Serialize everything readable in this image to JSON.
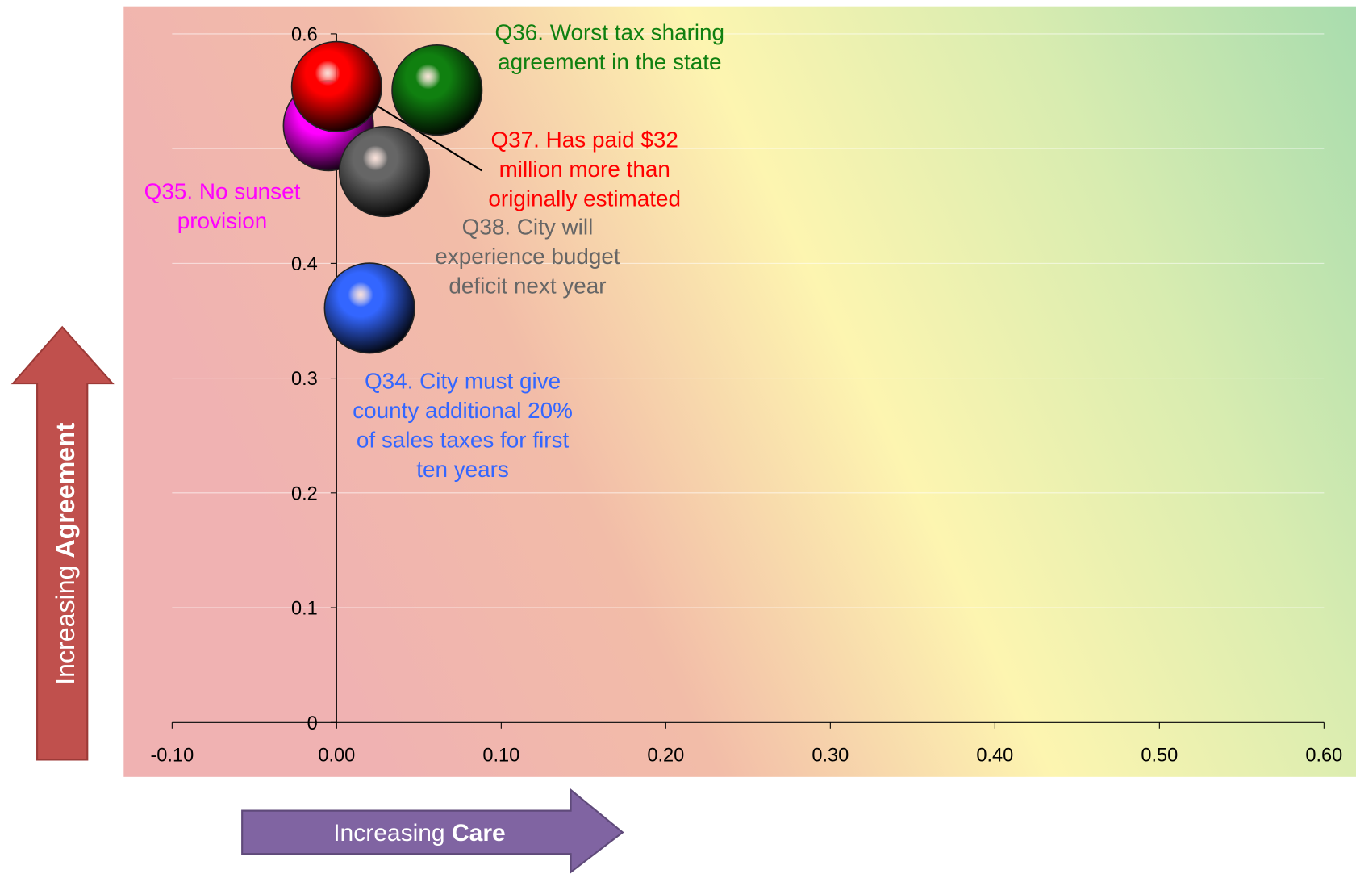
{
  "chart_data": {
    "type": "scatter",
    "x_label": [
      "Increasing",
      "Care"
    ],
    "y_label": [
      "Increasing",
      "Agreement"
    ],
    "xlim": [
      -0.1,
      0.6
    ],
    "xticks": [
      {
        "value": -0.1,
        "label": "-0.10"
      },
      {
        "value": 0,
        "label": "0.00"
      },
      {
        "value": 0.1,
        "label": "0.10"
      },
      {
        "value": 0.2,
        "label": "0.20"
      },
      {
        "value": 0.3,
        "label": "0.30"
      },
      {
        "value": 0.4,
        "label": "0.40"
      },
      {
        "value": 0.5,
        "label": "0.50"
      },
      {
        "value": 0.6,
        "label": "0.60"
      }
    ],
    "ylim": [
      0,
      0.6
    ],
    "yticks": [
      0,
      0.1,
      0.2,
      0.3,
      0.4,
      0.5,
      0.6
    ],
    "grid": true,
    "series": [
      {
        "name": "Q34. City must give county additional 20% of sales taxes for first ten years",
        "color": "#3366ff",
        "x": [
          0.02
        ],
        "values": [
          0.361
        ]
      },
      {
        "name": "Q35. No sunset provision",
        "color": "#ff00ff",
        "x": [
          -0.005
        ],
        "values": [
          0.52
        ]
      },
      {
        "name": "Q38. City will experience budget deficit next year",
        "color": "#666666",
        "x": [
          0.029
        ],
        "values": [
          0.48
        ]
      },
      {
        "name": "Q36. Worst tax sharing agreement in the state",
        "color": "#108010",
        "x": [
          0.061
        ],
        "values": [
          0.551
        ]
      },
      {
        "name": "Q37. Has paid $32 million more than originally estimated",
        "color": "#ff0000",
        "x": [
          0.0
        ],
        "values": [
          0.554
        ]
      }
    ]
  }
}
